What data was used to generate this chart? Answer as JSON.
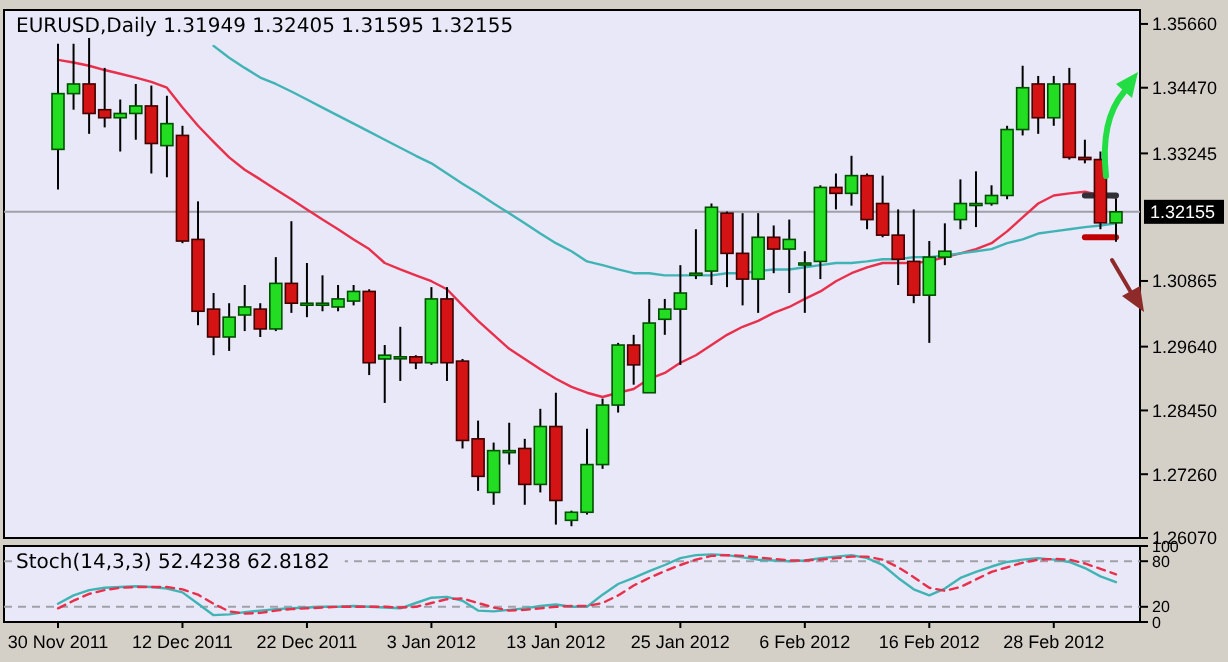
{
  "chart_data": [
    {
      "type": "candlestick",
      "title": "EURUSD,Daily  1.31949 1.32405 1.31595 1.32155",
      "categories": [
        null,
        null,
        null,
        null,
        null,
        null,
        null,
        null,
        null,
        null,
        null,
        null,
        null,
        null,
        null,
        null,
        null,
        null,
        null,
        null,
        null,
        null,
        null,
        null,
        null,
        null,
        null,
        null,
        null,
        null,
        null,
        null,
        null,
        null,
        null,
        null,
        null,
        null,
        null,
        null,
        null,
        null,
        null,
        null,
        null,
        null,
        null,
        null,
        null,
        null,
        null,
        null,
        null,
        null,
        null,
        null,
        null,
        null,
        null,
        null,
        null,
        null,
        null,
        null,
        null,
        null,
        null,
        null,
        null
      ],
      "ohlc": [
        [
          1.3332,
          1.3529,
          1.3257,
          1.3436
        ],
        [
          1.3436,
          1.3529,
          1.3406,
          1.3454
        ],
        [
          1.3454,
          1.3544,
          1.3361,
          1.3399
        ],
        [
          1.3406,
          1.3484,
          1.3373,
          1.3391
        ],
        [
          1.3391,
          1.3425,
          1.3328,
          1.3399
        ],
        [
          1.3399,
          1.3454,
          1.335,
          1.3413
        ],
        [
          1.3413,
          1.3451,
          1.3287,
          1.3343
        ],
        [
          1.3339,
          1.3432,
          1.328,
          1.338
        ],
        [
          1.3358,
          1.3376,
          1.3157,
          1.3161
        ],
        [
          1.3164,
          1.3235,
          1.3004,
          1.303
        ],
        [
          1.3034,
          1.3064,
          1.2948,
          1.2982
        ],
        [
          1.2982,
          1.3045,
          1.2956,
          1.3019
        ],
        [
          1.3023,
          1.3079,
          1.2993,
          1.3038
        ],
        [
          1.3034,
          1.3045,
          1.2982,
          1.2997
        ],
        [
          1.2997,
          1.3131,
          1.2993,
          1.3082
        ],
        [
          1.3082,
          1.3198,
          1.3027,
          1.3045
        ],
        [
          1.3045,
          1.312,
          1.3019,
          1.3045
        ],
        [
          1.3045,
          1.3097,
          1.303,
          1.3045
        ],
        [
          1.3038,
          1.3079,
          1.303,
          1.3053
        ],
        [
          1.3049,
          1.3079,
          1.3041,
          1.3067
        ],
        [
          1.3067,
          1.3071,
          1.2911,
          1.2934
        ],
        [
          1.2941,
          1.2967,
          1.2859,
          1.2948
        ],
        [
          1.2945,
          1.3001,
          1.29,
          1.2945
        ],
        [
          1.2945,
          1.2948,
          1.2922,
          1.2934
        ],
        [
          1.2934,
          1.3075,
          1.293,
          1.3053
        ],
        [
          1.3053,
          1.3075,
          1.29,
          1.2934
        ],
        [
          1.2937,
          1.2941,
          1.2774,
          1.2789
        ],
        [
          1.2792,
          1.2826,
          1.2695,
          1.2722
        ],
        [
          1.2692,
          1.2785,
          1.2669,
          1.277
        ],
        [
          1.277,
          1.2822,
          1.2744,
          1.277
        ],
        [
          1.2774,
          1.2792,
          1.2669,
          1.2707
        ],
        [
          1.2707,
          1.2848,
          1.2692,
          1.2815
        ],
        [
          1.2815,
          1.2878,
          1.2632,
          1.2677
        ],
        [
          1.264,
          1.2658,
          1.2629,
          1.2655
        ],
        [
          1.2655,
          1.2811,
          1.2651,
          1.2744
        ],
        [
          1.2744,
          1.2867,
          1.2736,
          1.2855
        ],
        [
          1.2855,
          1.2971,
          1.2841,
          1.2967
        ],
        [
          1.2967,
          1.2986,
          1.2893,
          1.293
        ],
        [
          1.2878,
          1.3053,
          1.2878,
          1.3008
        ],
        [
          1.3015,
          1.3053,
          1.2986,
          1.3034
        ],
        [
          1.3034,
          1.3116,
          1.293,
          1.3064
        ],
        [
          1.3101,
          1.3183,
          1.309,
          1.3101
        ],
        [
          1.3105,
          1.3231,
          1.3079,
          1.3224
        ],
        [
          1.3213,
          1.3216,
          1.3075,
          1.3138
        ],
        [
          1.3138,
          1.3213,
          1.3041,
          1.309
        ],
        [
          1.309,
          1.3213,
          1.3027,
          1.3168
        ],
        [
          1.3168,
          1.319,
          1.3101,
          1.3146
        ],
        [
          1.3146,
          1.3201,
          1.3064,
          1.3164
        ],
        [
          1.312,
          1.3142,
          1.3027,
          1.312
        ],
        [
          1.3123,
          1.3265,
          1.309,
          1.3261
        ],
        [
          1.3261,
          1.3287,
          1.322,
          1.325
        ],
        [
          1.325,
          1.332,
          1.3227,
          1.3283
        ],
        [
          1.3283,
          1.3287,
          1.3183,
          1.3201
        ],
        [
          1.3231,
          1.3283,
          1.3168,
          1.3172
        ],
        [
          1.3172,
          1.322,
          1.3079,
          1.3127
        ],
        [
          1.3123,
          1.322,
          1.3045,
          1.306
        ],
        [
          1.306,
          1.3161,
          1.2971,
          1.3131
        ],
        [
          1.3131,
          1.3194,
          1.3116,
          1.3142
        ],
        [
          1.3201,
          1.3276,
          1.3183,
          1.3231
        ],
        [
          1.3231,
          1.3291,
          1.3187,
          1.3231
        ],
        [
          1.3231,
          1.3265,
          1.3227,
          1.3246
        ],
        [
          1.3246,
          1.3376,
          1.3239,
          1.3369
        ],
        [
          1.3369,
          1.3488,
          1.3358,
          1.3447
        ],
        [
          1.3454,
          1.3469,
          1.3361,
          1.3391
        ],
        [
          1.3391,
          1.3469,
          1.3376,
          1.3454
        ],
        [
          1.3454,
          1.3484,
          1.3313,
          1.3317
        ],
        [
          1.3317,
          1.335,
          1.3306,
          1.3313
        ],
        [
          1.3313,
          1.3328,
          1.3183,
          1.3195
        ],
        [
          1.31949,
          1.32405,
          1.31595,
          1.32155
        ]
      ],
      "series": [
        {
          "type": "line",
          "color": "#e8304c",
          "values": [
            1.3499,
            1.3494,
            1.3488,
            1.348,
            1.3473,
            1.3466,
            1.3458,
            1.3447,
            1.341,
            1.3376,
            1.3346,
            1.3317,
            1.3294,
            1.3276,
            1.3257,
            1.3239,
            1.322,
            1.3201,
            1.3183,
            1.3164,
            1.3146,
            1.312,
            1.3108,
            1.3097,
            1.3086,
            1.3071,
            1.3041,
            1.3012,
            1.2986,
            1.296,
            1.2941,
            1.2922,
            1.2904,
            1.2889,
            1.2878,
            1.287,
            1.2878,
            1.2885,
            1.2904,
            1.2915,
            1.2934,
            1.2948,
            1.2967,
            1.2986,
            1.3001,
            1.3012,
            1.3027,
            1.3038,
            1.3053,
            1.3067,
            1.3086,
            1.3101,
            1.3112,
            1.312,
            1.312,
            1.312,
            1.3123,
            1.3131,
            1.3138,
            1.3146,
            1.3157,
            1.3179,
            1.3205,
            1.3231,
            1.3246,
            1.325,
            1.3253,
            1.3246,
            1.3242
          ]
        },
        {
          "type": "line",
          "color": "#40b4b4",
          "values": [
            null,
            null,
            null,
            null,
            null,
            null,
            null,
            null,
            null,
            null,
            1.3525,
            1.3503,
            1.3484,
            1.3466,
            1.3454,
            1.344,
            1.3425,
            1.341,
            1.3395,
            1.338,
            1.3365,
            1.335,
            1.3335,
            1.332,
            1.3306,
            1.3287,
            1.3268,
            1.325,
            1.3231,
            1.3213,
            1.3194,
            1.3175,
            1.3157,
            1.3142,
            1.3123,
            1.3116,
            1.3108,
            1.3101,
            1.3101,
            1.3097,
            1.3097,
            1.3097,
            1.3097,
            1.3101,
            1.3101,
            1.3105,
            1.3108,
            1.3108,
            1.3112,
            1.3116,
            1.312,
            1.312,
            1.3123,
            1.3127,
            1.3127,
            1.3131,
            1.3131,
            1.3134,
            1.3138,
            1.3142,
            1.3146,
            1.3157,
            1.3164,
            1.3175,
            1.3179,
            1.3183,
            1.3187,
            1.319,
            1.3194
          ]
        },
        {
          "type": "line",
          "color": "#303038",
          "values": [
            null,
            null,
            null,
            null,
            null,
            null,
            null,
            null,
            null,
            null,
            null,
            null,
            null,
            null,
            null,
            null,
            null,
            null,
            null,
            null,
            null,
            null,
            null,
            null,
            null,
            null,
            null,
            null,
            null,
            null,
            null,
            null,
            null,
            null,
            null,
            null,
            null,
            null,
            null,
            null,
            null,
            null,
            null,
            null,
            null,
            null,
            null,
            null,
            null,
            null,
            null,
            null,
            null,
            null,
            null,
            null,
            null,
            null,
            null,
            null,
            null,
            null,
            null,
            null,
            null,
            null,
            1.3246,
            1.3246,
            1.3246
          ]
        },
        {
          "type": "line",
          "color": "#c00000",
          "values": [
            null,
            null,
            null,
            null,
            null,
            null,
            null,
            null,
            null,
            null,
            null,
            null,
            null,
            null,
            null,
            null,
            null,
            null,
            null,
            null,
            null,
            null,
            null,
            null,
            null,
            null,
            null,
            null,
            null,
            null,
            null,
            null,
            null,
            null,
            null,
            null,
            null,
            null,
            null,
            null,
            null,
            null,
            null,
            null,
            null,
            null,
            null,
            null,
            null,
            null,
            null,
            null,
            null,
            null,
            null,
            null,
            null,
            null,
            null,
            null,
            null,
            null,
            null,
            null,
            null,
            null,
            1.3168,
            1.3168,
            1.3168
          ]
        }
      ],
      "ylim": [
        1.2607,
        1.3592
      ],
      "yticks": [
        {
          "value": 1.3566,
          "label": "1.35660"
        },
        {
          "value": 1.3447,
          "label": "1.34470"
        },
        {
          "value": 1.33245,
          "label": "1.33245"
        },
        {
          "value": 1.30865,
          "label": "1.30865"
        },
        {
          "value": 1.2964,
          "label": "1.29640"
        },
        {
          "value": 1.2845,
          "label": "1.28450"
        },
        {
          "value": 1.2726,
          "label": "1.27260"
        },
        {
          "value": 1.2607,
          "label": "1.26070"
        }
      ],
      "ref_lines": [
        {
          "axis": "y",
          "value": 1.32155,
          "label": "1.32155",
          "color": "#a0a0a8"
        }
      ],
      "tick_labels": "y"
    },
    {
      "type": "line",
      "title": "Stoch(14,3,3) 52.4238 62.8182",
      "categories": [
        "30 Nov 2011",
        null,
        null,
        null,
        null,
        null,
        null,
        null,
        "12 Dec 2011",
        null,
        null,
        null,
        null,
        null,
        null,
        null,
        "22 Dec 2011",
        null,
        null,
        null,
        null,
        null,
        null,
        null,
        "3 Jan 2012",
        null,
        null,
        null,
        null,
        null,
        null,
        null,
        "13 Jan 2012",
        null,
        null,
        null,
        null,
        null,
        null,
        null,
        "25 Jan 2012",
        null,
        null,
        null,
        null,
        null,
        null,
        null,
        "6 Feb 2012",
        null,
        null,
        null,
        null,
        null,
        null,
        null,
        "16 Feb 2012",
        null,
        null,
        null,
        null,
        null,
        null,
        null,
        "28 Feb 2012",
        null,
        null,
        null,
        null
      ],
      "series": [
        {
          "color": "#40b4b4",
          "line_style": "solid",
          "values": [
            24,
            35,
            42,
            45,
            46,
            47,
            46,
            44,
            39,
            24,
            9,
            10,
            13,
            15,
            17,
            18,
            19,
            20,
            20,
            21,
            20,
            19,
            18,
            25,
            32,
            33,
            28,
            15,
            14,
            16,
            18,
            21,
            23,
            20,
            20,
            36,
            50,
            58,
            67,
            75,
            84,
            88,
            89,
            88,
            85,
            82,
            81,
            80,
            81,
            84,
            86,
            88,
            84,
            75,
            58,
            43,
            35,
            44,
            58,
            66,
            73,
            79,
            82,
            84,
            82,
            79,
            71,
            60,
            52.4238
          ]
        },
        {
          "color": "#e8304c",
          "line_style": "dashed",
          "values": [
            18,
            28,
            37,
            42,
            45,
            46,
            46,
            46,
            43,
            36,
            24,
            14,
            11,
            12,
            15,
            17,
            18,
            19,
            20,
            20,
            20,
            20,
            19,
            20,
            25,
            30,
            31,
            25,
            19,
            15,
            16,
            18,
            20,
            21,
            21,
            25,
            35,
            48,
            58,
            67,
            75,
            82,
            87,
            88,
            87,
            85,
            83,
            81,
            81,
            82,
            84,
            86,
            86,
            82,
            72,
            59,
            45,
            41,
            46,
            56,
            66,
            72,
            78,
            82,
            83,
            82,
            77,
            70,
            62.8182
          ]
        }
      ],
      "ylim": [
        0,
        100
      ],
      "yticks": [
        0,
        20,
        80,
        100
      ],
      "ref_lines": [
        {
          "axis": "y",
          "value": 20,
          "color": "#a0a0a8",
          "line_style": "dashed"
        },
        {
          "axis": "y",
          "value": 80,
          "color": "#a0a0a8",
          "line_style": "dashed"
        }
      ]
    }
  ]
}
